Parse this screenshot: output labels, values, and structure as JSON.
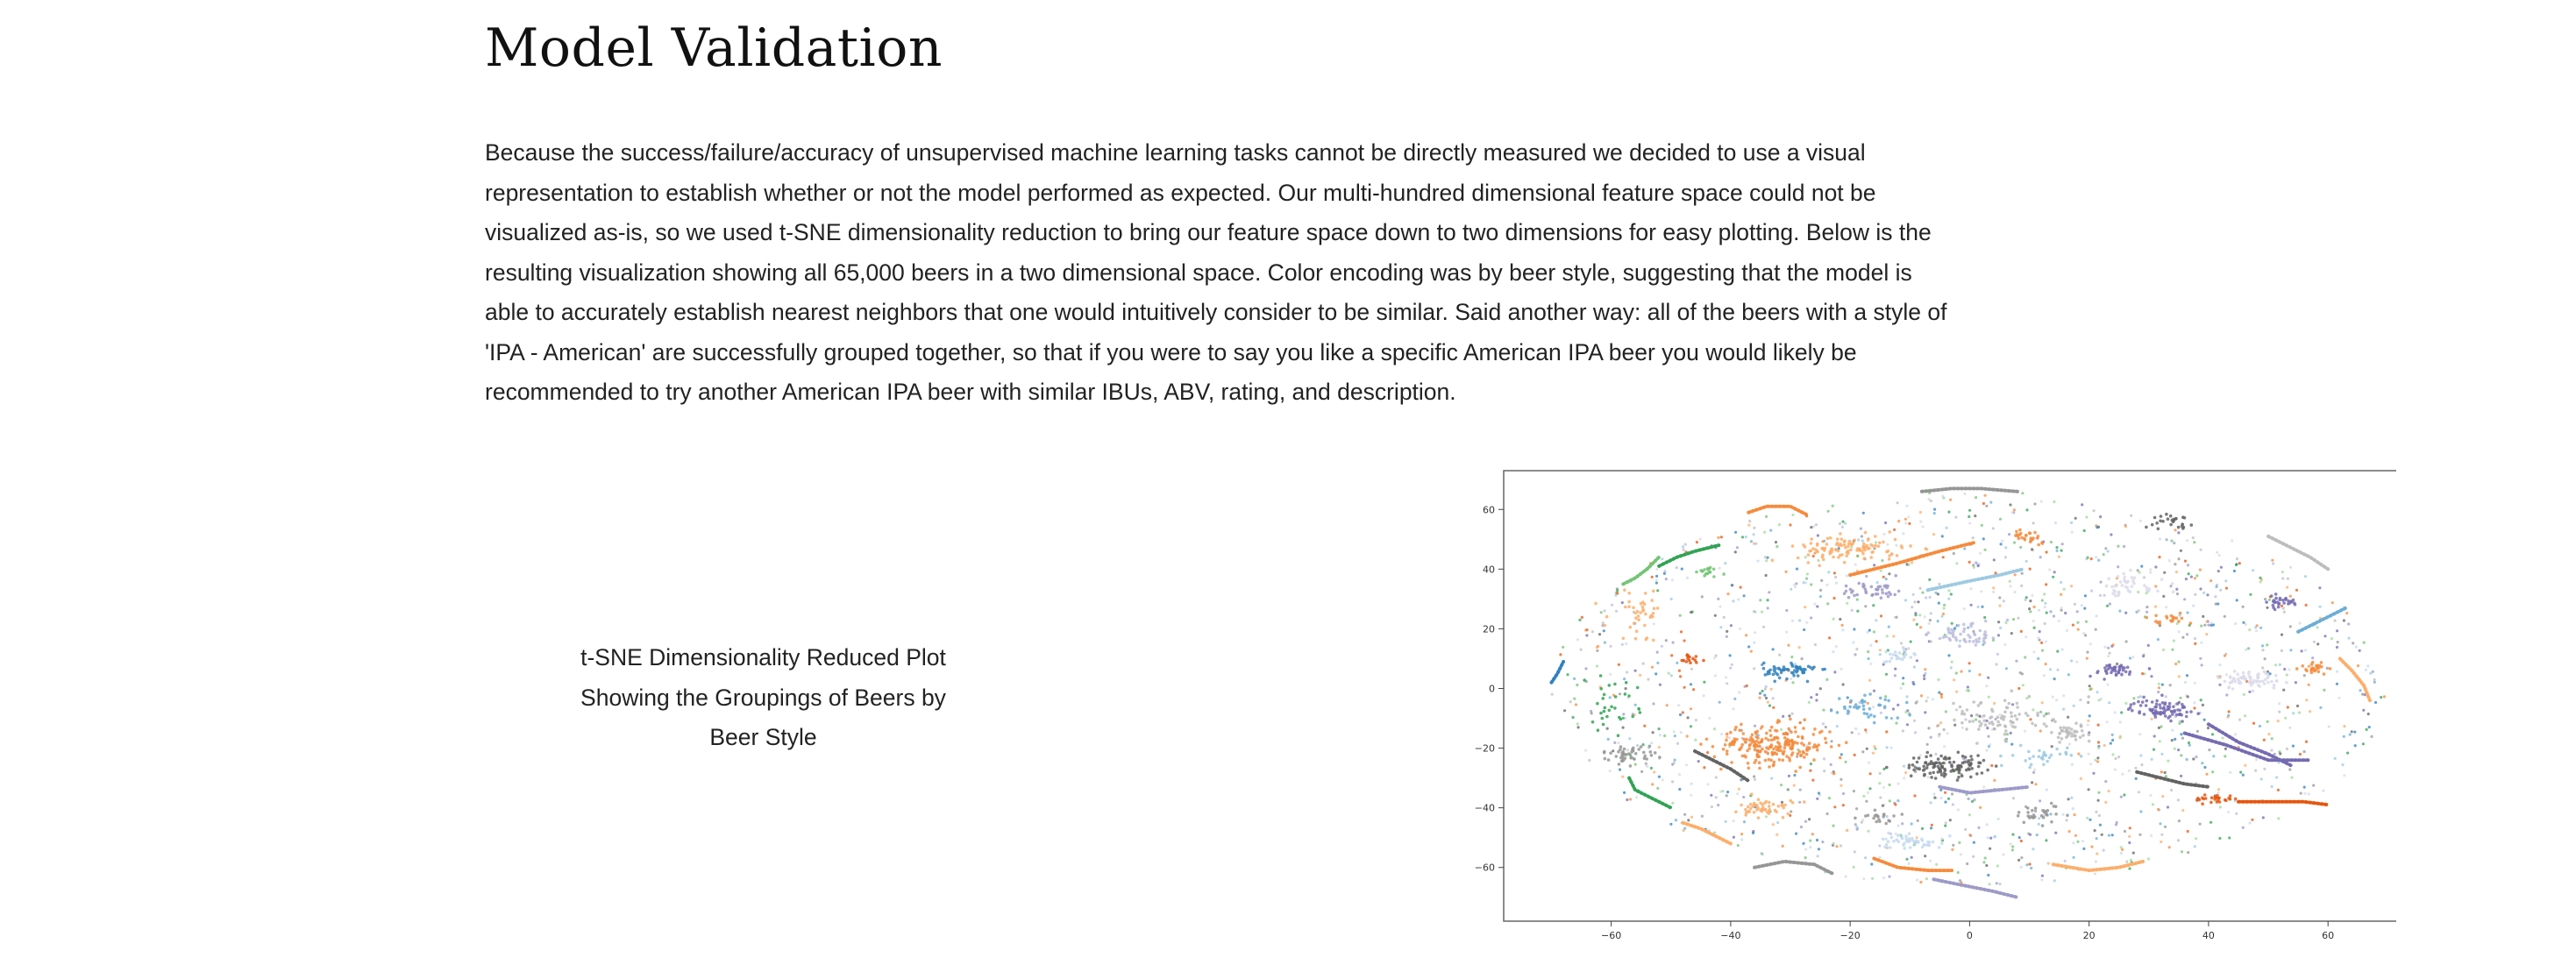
{
  "section": {
    "title": "Model Validation",
    "paragraph": "Because the success/failure/accuracy of unsupervised machine learning tasks cannot be directly measured we decided to use a visual representation to establish whether or not the model performed as expected. Our multi-hundred dimensional feature space could not be visualized as-is, so we used t-SNE dimensionality reduction to bring our feature space down to two dimensions for easy plotting. Below is the resulting visualization showing all 65,000 beers in a two dimensional space. Color encoding was by beer style, suggesting that the model is able to accurately establish nearest neighbors that one would intuitively consider to be similar. Said another way: all of the beers with a style of 'IPA - American' are successfully grouped together, so that if you were to say you like a specific American IPA beer you would likely be recommended to try another American IPA beer with similar IBUs, ABV, rating, and description.",
    "caption": "t-SNE Dimensionality Reduced Plot Showing the Groupings of Beers by Beer Style"
  },
  "chart_data": {
    "type": "scatter",
    "title": "",
    "xlabel": "",
    "ylabel": "",
    "xlim": [
      -78,
      77
    ],
    "ylim": [
      -78,
      73
    ],
    "x_ticks": [
      -60,
      -40,
      -20,
      0,
      20,
      40,
      60
    ],
    "y_ticks": [
      -60,
      -40,
      -20,
      0,
      20,
      40,
      60
    ],
    "x_tick_labels": [
      "−60",
      "−40",
      "−20",
      "0",
      "20",
      "40",
      "60"
    ],
    "y_tick_labels": [
      "−60",
      "−40",
      "−20",
      "0",
      "20",
      "40",
      "60"
    ],
    "grid": false,
    "legend": "none",
    "palette": [
      "#f58b3c",
      "#fdae6b",
      "#3182bd",
      "#6baed6",
      "#9ecae1",
      "#c6dbef",
      "#e6550d",
      "#31a354",
      "#74c476",
      "#a1d99b",
      "#756bb1",
      "#9e9ac8",
      "#bcbddc",
      "#dadaeb",
      "#636363",
      "#969696",
      "#bdbdbd",
      "#d9d9d9"
    ],
    "clusters": [
      {
        "color": "#f58b3c",
        "cx": -33,
        "cy": -19,
        "rx": 9,
        "ry": 6,
        "n": 220
      },
      {
        "color": "#fdae6b",
        "cx": -20,
        "cy": 47,
        "rx": 8,
        "ry": 4,
        "n": 110
      },
      {
        "color": "#636363",
        "cx": -4,
        "cy": -26,
        "rx": 6,
        "ry": 3.5,
        "n": 110
      },
      {
        "color": "#756bb1",
        "cx": 32,
        "cy": -7,
        "rx": 4.5,
        "ry": 3,
        "n": 80
      },
      {
        "color": "#dadaeb",
        "cx": 47,
        "cy": 3,
        "rx": 5,
        "ry": 3,
        "n": 70
      },
      {
        "color": "#3182bd",
        "cx": -30,
        "cy": 6,
        "rx": 4,
        "ry": 2.5,
        "n": 60
      },
      {
        "color": "#fdae6b",
        "cx": -34,
        "cy": -40,
        "rx": 4,
        "ry": 3,
        "n": 50
      },
      {
        "color": "#969696",
        "cx": -57,
        "cy": -22,
        "rx": 4,
        "ry": 2.5,
        "n": 45
      },
      {
        "color": "#c6dbef",
        "cx": -10,
        "cy": -51,
        "rx": 5,
        "ry": 2.5,
        "n": 45
      },
      {
        "color": "#756bb1",
        "cx": 24,
        "cy": 6,
        "rx": 4,
        "ry": 2,
        "n": 40
      },
      {
        "color": "#756bb1",
        "cx": 52,
        "cy": 29,
        "rx": 3,
        "ry": 2,
        "n": 30
      },
      {
        "color": "#636363",
        "cx": 34,
        "cy": 56,
        "rx": 3,
        "ry": 2,
        "n": 25
      },
      {
        "color": "#f58b3c",
        "cx": 10,
        "cy": 51,
        "rx": 2.5,
        "ry": 2,
        "n": 25
      },
      {
        "color": "#f58b3c",
        "cx": 58,
        "cy": 7,
        "rx": 2.5,
        "ry": 2,
        "n": 25
      },
      {
        "color": "#e6550d",
        "cx": 41,
        "cy": -37,
        "rx": 3,
        "ry": 1.5,
        "n": 25
      },
      {
        "color": "#74c476",
        "cx": -44,
        "cy": 39,
        "rx": 2,
        "ry": 1.5,
        "n": 20
      },
      {
        "color": "#9e9ac8",
        "cx": -16,
        "cy": 33,
        "rx": 5,
        "ry": 3,
        "n": 40
      },
      {
        "color": "#bdbdbd",
        "cx": 4,
        "cy": -10,
        "rx": 8,
        "ry": 6,
        "n": 80
      },
      {
        "color": "#bdbdbd",
        "cx": 17,
        "cy": -15,
        "rx": 5,
        "ry": 3,
        "n": 40
      },
      {
        "color": "#6baed6",
        "cx": -17,
        "cy": -6,
        "rx": 5,
        "ry": 4,
        "n": 40
      },
      {
        "color": "#9ecae1",
        "cx": 12,
        "cy": -23,
        "rx": 4,
        "ry": 3,
        "n": 30
      },
      {
        "color": "#c6dbef",
        "cx": -12,
        "cy": 11,
        "rx": 3,
        "ry": 2.5,
        "n": 25
      },
      {
        "color": "#969696",
        "cx": 12,
        "cy": -42,
        "rx": 5,
        "ry": 3,
        "n": 30
      },
      {
        "color": "#969696",
        "cx": -15,
        "cy": -43,
        "rx": 3,
        "ry": 2,
        "n": 20
      },
      {
        "color": "#f58b3c",
        "cx": 33,
        "cy": 23,
        "rx": 4,
        "ry": 2,
        "n": 20
      },
      {
        "color": "#31a354",
        "cx": -60,
        "cy": -5,
        "rx": 4,
        "ry": 8,
        "n": 30
      },
      {
        "color": "#fdae6b",
        "cx": -55,
        "cy": 25,
        "rx": 5,
        "ry": 8,
        "n": 40
      },
      {
        "color": "#e6550d",
        "cx": -47,
        "cy": 10,
        "rx": 2,
        "ry": 2,
        "n": 15
      },
      {
        "color": "#dadaeb",
        "cx": 26,
        "cy": 34,
        "rx": 6,
        "ry": 4,
        "n": 40
      },
      {
        "color": "#bcbddc",
        "cx": 0,
        "cy": 18,
        "rx": 6,
        "ry": 4,
        "n": 50
      }
    ],
    "scatter_noise": 1700,
    "curves": [
      {
        "color": "#31a354",
        "x": [
          -52,
          -49,
          -46,
          -42
        ],
        "y": [
          41,
          44,
          46,
          48
        ]
      },
      {
        "color": "#636363",
        "x": [
          -46,
          -43,
          -40,
          -37
        ],
        "y": [
          -21,
          -24,
          -27,
          -31
        ]
      },
      {
        "color": "#756bb1",
        "x": [
          36,
          43,
          50,
          57
        ],
        "y": [
          -15,
          -19,
          -24,
          -24
        ]
      },
      {
        "color": "#3182bd",
        "x": [
          -70,
          -69,
          -68
        ],
        "y": [
          2,
          5,
          9
        ]
      },
      {
        "color": "#f58b3c",
        "x": [
          -37,
          -34,
          -30,
          -27
        ],
        "y": [
          59,
          61,
          61,
          58
        ]
      },
      {
        "color": "#969696",
        "x": [
          -36,
          -31,
          -26,
          -23
        ],
        "y": [
          -60,
          -58,
          -59,
          -62
        ]
      },
      {
        "color": "#e6550d",
        "x": [
          45,
          50,
          56,
          60
        ],
        "y": [
          -38,
          -38,
          -38,
          -39
        ]
      },
      {
        "color": "#31a354",
        "x": [
          -57,
          -56,
          -53,
          -50
        ],
        "y": [
          -30,
          -34,
          -37,
          -40
        ]
      },
      {
        "color": "#9e9ac8",
        "x": [
          -6,
          -1,
          4,
          8
        ],
        "y": [
          -64,
          -66,
          -68,
          -70
        ]
      },
      {
        "color": "#fdae6b",
        "x": [
          14,
          20,
          25,
          29
        ],
        "y": [
          -59,
          -61,
          -60,
          -58
        ]
      },
      {
        "color": "#9ecae1",
        "x": [
          -7,
          0,
          5,
          9
        ],
        "y": [
          33,
          36,
          38,
          40
        ]
      },
      {
        "color": "#f58b3c",
        "x": [
          -20,
          -12,
          -5,
          1
        ],
        "y": [
          38,
          42,
          46,
          49
        ]
      },
      {
        "color": "#6baed6",
        "x": [
          55,
          58,
          61,
          63
        ],
        "y": [
          19,
          22,
          25,
          27
        ]
      },
      {
        "color": "#bdbdbd",
        "x": [
          50,
          53,
          57,
          60
        ],
        "y": [
          51,
          48,
          44,
          40
        ]
      },
      {
        "color": "#fdae6b",
        "x": [
          -48,
          -45,
          -42,
          -40
        ],
        "y": [
          -45,
          -47,
          -50,
          -52
        ]
      },
      {
        "color": "#9e9ac8",
        "x": [
          -5,
          0,
          5,
          10
        ],
        "y": [
          -33,
          -35,
          -34,
          -33
        ]
      },
      {
        "color": "#969696",
        "x": [
          -8,
          -3,
          2,
          8
        ],
        "y": [
          66,
          67,
          67,
          66
        ]
      },
      {
        "color": "#f58b3c",
        "x": [
          -16,
          -12,
          -7,
          -3
        ],
        "y": [
          -57,
          -60,
          -61,
          -61
        ]
      },
      {
        "color": "#756bb1",
        "x": [
          40,
          45,
          50,
          54
        ],
        "y": [
          -12,
          -18,
          -22,
          -26
        ]
      },
      {
        "color": "#fdae6b",
        "x": [
          62,
          64,
          66,
          67
        ],
        "y": [
          10,
          6,
          1,
          -4
        ]
      },
      {
        "color": "#74c476",
        "x": [
          -58,
          -56,
          -54,
          -52
        ],
        "y": [
          35,
          37,
          40,
          44
        ]
      },
      {
        "color": "#636363",
        "x": [
          28,
          32,
          36,
          40
        ],
        "y": [
          -28,
          -30,
          -32,
          -33
        ]
      }
    ]
  }
}
